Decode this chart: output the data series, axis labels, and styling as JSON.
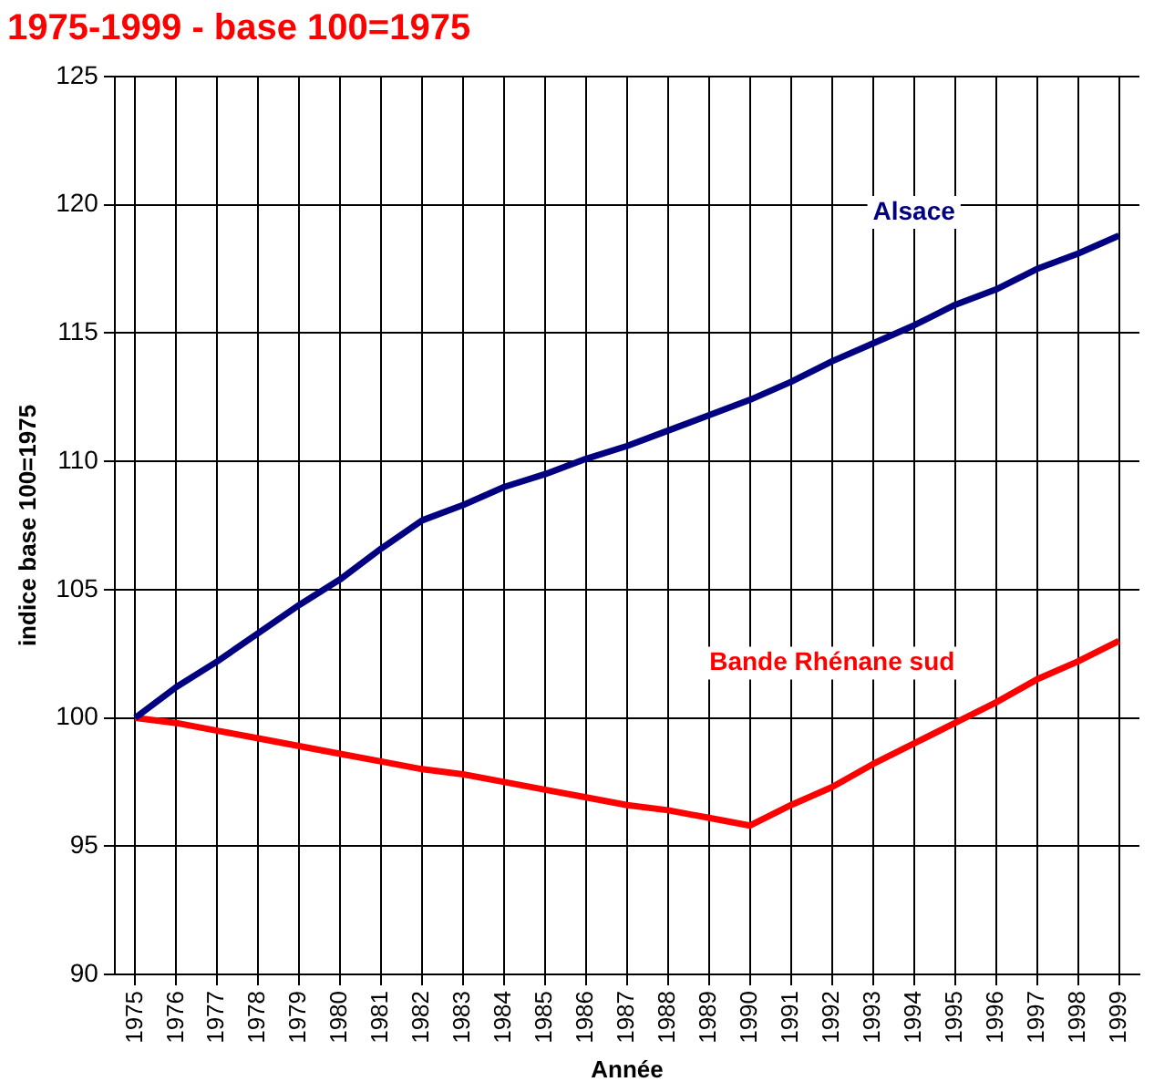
{
  "chart_data": {
    "type": "line",
    "title": "1975-1999 - base 100=1975",
    "xlabel": "Année",
    "ylabel": "indice base 100=1975",
    "categories": [
      "1975",
      "1976",
      "1977",
      "1978",
      "1979",
      "1980",
      "1981",
      "1982",
      "1983",
      "1984",
      "1985",
      "1986",
      "1987",
      "1988",
      "1989",
      "1990",
      "1991",
      "1992",
      "1993",
      "1994",
      "1995",
      "1996",
      "1997",
      "1998",
      "1999"
    ],
    "series": [
      {
        "name": "Alsace",
        "color": "#000080",
        "values": [
          100,
          101.2,
          102.2,
          103.3,
          104.4,
          105.4,
          106.6,
          107.7,
          108.3,
          109.0,
          109.5,
          110.1,
          110.6,
          111.2,
          111.8,
          112.4,
          113.1,
          113.9,
          114.6,
          115.3,
          116.1,
          116.7,
          117.5,
          118.1,
          118.8
        ]
      },
      {
        "name": "Bande Rhénane sud",
        "color": "#ff0000",
        "values": [
          100,
          99.8,
          99.5,
          99.2,
          98.9,
          98.6,
          98.3,
          98.0,
          97.8,
          97.5,
          97.2,
          96.9,
          96.6,
          96.4,
          96.1,
          95.8,
          96.6,
          97.3,
          98.2,
          99.0,
          99.8,
          100.6,
          101.5,
          102.2,
          103.0
        ]
      }
    ],
    "ylim": [
      90,
      125
    ],
    "yticks": [
      90,
      95,
      100,
      105,
      110,
      115,
      120,
      125
    ],
    "grid": true,
    "legend": false,
    "marker": "none",
    "line_style": "solid"
  }
}
